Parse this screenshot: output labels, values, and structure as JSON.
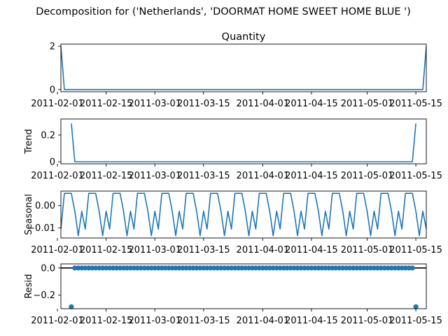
{
  "figure": {
    "suptitle": "Decomposition for ('Netherlands', 'DOORMAT HOME SWEET HOME BLUE ')"
  },
  "chart_data": [
    {
      "type": "line",
      "title": "Quantity",
      "ylabel": "",
      "xlim": [
        "2011-02-02",
        "2011-05-18"
      ],
      "ylim": [
        -0.1,
        2.1
      ],
      "yticks": [
        0,
        2
      ],
      "xticks": [
        "2011-02-01",
        "2011-02-15",
        "2011-03-01",
        "2011-03-15",
        "2011-04-01",
        "2011-04-15",
        "2011-05-01",
        "2011-05-15"
      ],
      "series": [
        {
          "points": [
            [
              "2011-02-02",
              2.0
            ],
            [
              "2011-02-03",
              0.0
            ],
            [
              "2011-05-17",
              0.0
            ],
            [
              "2011-05-18",
              2.0
            ]
          ]
        }
      ]
    },
    {
      "type": "line",
      "title": "",
      "ylabel": "Trend",
      "xlim": [
        "2011-02-02",
        "2011-05-18"
      ],
      "ylim": [
        -0.015,
        0.32
      ],
      "yticks": [
        0.0,
        0.2
      ],
      "xticks": [
        "2011-02-01",
        "2011-02-15",
        "2011-03-01",
        "2011-03-15",
        "2011-04-01",
        "2011-04-15",
        "2011-05-01",
        "2011-05-15"
      ],
      "series": [
        {
          "points": [
            [
              "2011-02-05",
              0.286
            ],
            [
              "2011-02-06",
              0.0
            ],
            [
              "2011-05-14",
              0.0
            ],
            [
              "2011-05-15",
              0.286
            ]
          ]
        }
      ]
    },
    {
      "type": "line",
      "title": "",
      "ylabel": "Seasonal",
      "xlim": [
        "2011-02-02",
        "2011-05-18"
      ],
      "ylim": [
        -0.0145,
        0.0065
      ],
      "yticks": [
        0.0,
        -0.01
      ],
      "ytick_labels": [
        "0.00",
        "−0.01"
      ],
      "xticks": [
        "2011-02-01",
        "2011-02-15",
        "2011-03-01",
        "2011-03-15",
        "2011-04-01",
        "2011-04-15",
        "2011-05-01",
        "2011-05-15"
      ],
      "period_days": 7,
      "series": [
        {
          "weekly_pattern": [
            -0.0105,
            0.0055,
            0.0055,
            0.0055,
            -0.0025,
            -0.0135,
            -0.0025
          ]
        }
      ]
    },
    {
      "type": "scatter",
      "title": "",
      "ylabel": "Resid",
      "xlim": [
        "2011-02-02",
        "2011-05-18"
      ],
      "ylim": [
        -0.3,
        0.03
      ],
      "yticks": [
        0.0,
        -0.2
      ],
      "ytick_labels": [
        "0.0",
        "−0.2"
      ],
      "xticks": [
        "2011-02-01",
        "2011-02-15",
        "2011-03-01",
        "2011-03-15",
        "2011-04-01",
        "2011-04-15",
        "2011-05-01",
        "2011-05-15"
      ],
      "hline": 0.0,
      "series": [
        {
          "points": [
            [
              "2011-02-05",
              -0.286
            ],
            [
              "2011-02-06",
              0.0
            ],
            [
              "2011-02-07",
              0.0
            ],
            [
              "2011-02-08",
              0.0
            ],
            [
              "2011-02-09",
              0.0
            ],
            [
              "2011-02-10",
              0.0
            ],
            [
              "2011-02-11",
              0.0
            ],
            [
              "2011-02-12",
              0.0
            ],
            [
              "2011-02-13",
              0.0
            ],
            [
              "2011-02-14",
              0.0
            ],
            [
              "2011-02-15",
              0.0
            ],
            [
              "2011-02-16",
              0.0
            ],
            [
              "2011-02-17",
              0.0
            ],
            [
              "2011-02-18",
              0.0
            ],
            [
              "2011-02-19",
              0.0
            ],
            [
              "2011-02-20",
              0.0
            ],
            [
              "2011-02-21",
              0.0
            ],
            [
              "2011-02-22",
              0.0
            ],
            [
              "2011-02-23",
              0.0
            ],
            [
              "2011-02-24",
              0.0
            ],
            [
              "2011-02-25",
              0.0
            ],
            [
              "2011-02-26",
              0.0
            ],
            [
              "2011-02-27",
              0.0
            ],
            [
              "2011-02-28",
              0.0
            ],
            [
              "2011-03-01",
              0.0
            ],
            [
              "2011-03-02",
              0.0
            ],
            [
              "2011-03-03",
              0.0
            ],
            [
              "2011-03-04",
              0.0
            ],
            [
              "2011-03-05",
              0.0
            ],
            [
              "2011-03-06",
              0.0
            ],
            [
              "2011-03-07",
              0.0
            ],
            [
              "2011-03-08",
              0.0
            ],
            [
              "2011-03-09",
              0.0
            ],
            [
              "2011-03-10",
              0.0
            ],
            [
              "2011-03-11",
              0.0
            ],
            [
              "2011-03-12",
              0.0
            ],
            [
              "2011-03-13",
              0.0
            ],
            [
              "2011-03-14",
              0.0
            ],
            [
              "2011-03-15",
              0.0
            ],
            [
              "2011-03-16",
              0.0
            ],
            [
              "2011-03-17",
              0.0
            ],
            [
              "2011-03-18",
              0.0
            ],
            [
              "2011-03-19",
              0.0
            ],
            [
              "2011-03-20",
              0.0
            ],
            [
              "2011-03-21",
              0.0
            ],
            [
              "2011-03-22",
              0.0
            ],
            [
              "2011-03-23",
              0.0
            ],
            [
              "2011-03-24",
              0.0
            ],
            [
              "2011-03-25",
              0.0
            ],
            [
              "2011-03-26",
              0.0
            ],
            [
              "2011-03-27",
              0.0
            ],
            [
              "2011-03-28",
              0.0
            ],
            [
              "2011-03-29",
              0.0
            ],
            [
              "2011-03-30",
              0.0
            ],
            [
              "2011-03-31",
              0.0
            ],
            [
              "2011-04-01",
              0.0
            ],
            [
              "2011-04-02",
              0.0
            ],
            [
              "2011-04-03",
              0.0
            ],
            [
              "2011-04-04",
              0.0
            ],
            [
              "2011-04-05",
              0.0
            ],
            [
              "2011-04-06",
              0.0
            ],
            [
              "2011-04-07",
              0.0
            ],
            [
              "2011-04-08",
              0.0
            ],
            [
              "2011-04-09",
              0.0
            ],
            [
              "2011-04-10",
              0.0
            ],
            [
              "2011-04-11",
              0.0
            ],
            [
              "2011-04-12",
              0.0
            ],
            [
              "2011-04-13",
              0.0
            ],
            [
              "2011-04-14",
              0.0
            ],
            [
              "2011-04-15",
              0.0
            ],
            [
              "2011-04-16",
              0.0
            ],
            [
              "2011-04-17",
              0.0
            ],
            [
              "2011-04-18",
              0.0
            ],
            [
              "2011-04-19",
              0.0
            ],
            [
              "2011-04-20",
              0.0
            ],
            [
              "2011-04-21",
              0.0
            ],
            [
              "2011-04-22",
              0.0
            ],
            [
              "2011-04-23",
              0.0
            ],
            [
              "2011-04-24",
              0.0
            ],
            [
              "2011-04-25",
              0.0
            ],
            [
              "2011-04-26",
              0.0
            ],
            [
              "2011-04-27",
              0.0
            ],
            [
              "2011-04-28",
              0.0
            ],
            [
              "2011-04-29",
              0.0
            ],
            [
              "2011-04-30",
              0.0
            ],
            [
              "2011-05-01",
              0.0
            ],
            [
              "2011-05-02",
              0.0
            ],
            [
              "2011-05-03",
              0.0
            ],
            [
              "2011-05-04",
              0.0
            ],
            [
              "2011-05-05",
              0.0
            ],
            [
              "2011-05-06",
              0.0
            ],
            [
              "2011-05-07",
              0.0
            ],
            [
              "2011-05-08",
              0.0
            ],
            [
              "2011-05-09",
              0.0
            ],
            [
              "2011-05-10",
              0.0
            ],
            [
              "2011-05-11",
              0.0
            ],
            [
              "2011-05-12",
              0.0
            ],
            [
              "2011-05-13",
              0.0
            ],
            [
              "2011-05-14",
              0.0
            ],
            [
              "2011-05-15",
              -0.286
            ]
          ]
        }
      ]
    }
  ]
}
